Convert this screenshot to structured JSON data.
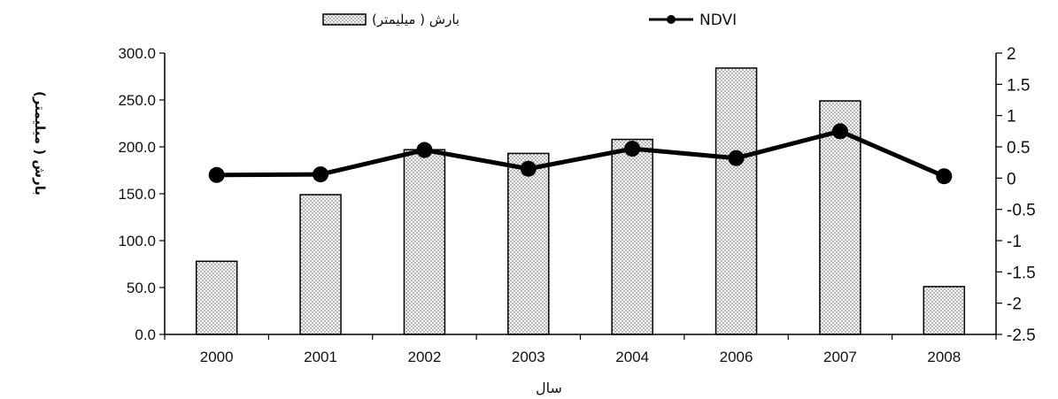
{
  "chart_data": {
    "type": "bar",
    "categories": [
      "2000",
      "2001",
      "2002",
      "2003",
      "2004",
      "2006",
      "2007",
      "2008"
    ],
    "series": [
      {
        "name": "بارش ( میلیمتر)",
        "type": "bar",
        "axis": "left",
        "values": [
          78,
          149,
          197,
          193,
          208,
          284,
          249,
          51
        ]
      },
      {
        "name": "NDVI",
        "type": "line",
        "axis": "right",
        "values": [
          0.05,
          0.06,
          0.45,
          0.15,
          0.47,
          0.32,
          0.75,
          0.03
        ]
      }
    ],
    "xlabel": "سال",
    "ylabel_left": "بارش ( میلیمتر)",
    "ylim_left": [
      0,
      300
    ],
    "yticks_left": [
      "0.0",
      "50.0",
      "100.0",
      "150.0",
      "200.0",
      "250.0",
      "300.0"
    ],
    "ylim_right": [
      -2.5,
      2
    ],
    "yticks_right": [
      "-2.5",
      "-2",
      "-1.5",
      "-1",
      "-0.5",
      "0",
      "0.5",
      "1",
      "1.5",
      "2"
    ],
    "grid": false,
    "legend_position": "top"
  }
}
